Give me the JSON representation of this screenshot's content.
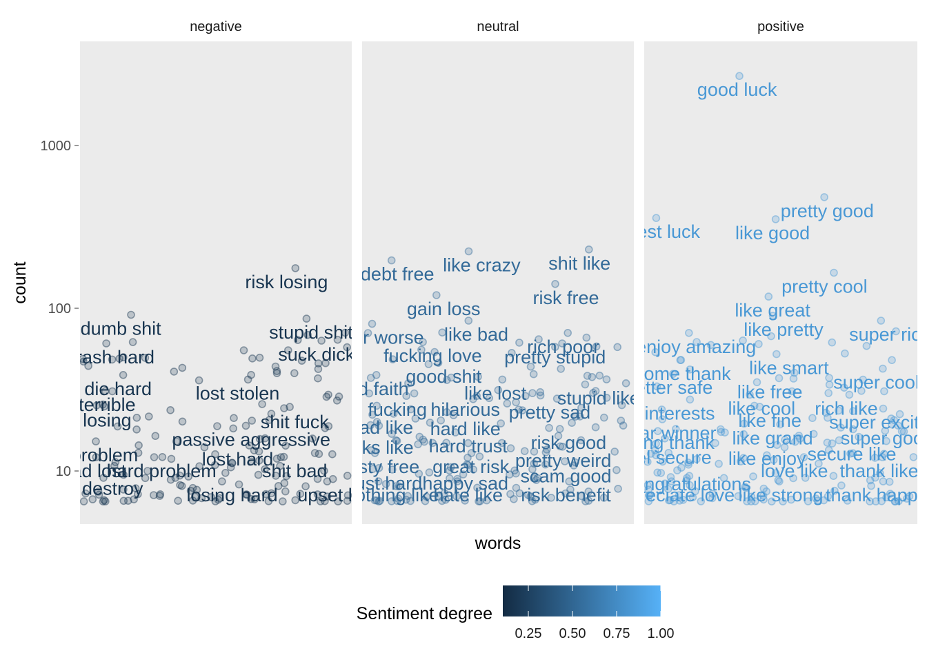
{
  "chart_data": {
    "type": "scatter",
    "xlabel": "words",
    "ylabel": "count",
    "y_scale": "log10",
    "ylim": [
      5,
      4000
    ],
    "y_ticks": [
      "10",
      "100",
      "1000"
    ],
    "grid": false,
    "legend": {
      "title": "Sentiment degree",
      "placement": "bottom",
      "type": "colorbar",
      "low_color": "#132B43",
      "high_color": "#56B1F7",
      "range": [
        0.05,
        1.0
      ],
      "ticks": [
        "0.25",
        "0.50",
        "0.75",
        "1.00"
      ]
    },
    "panels": [
      {
        "name": "negative",
        "degree": 0.12,
        "labels": [
          {
            "text": "dumb shit",
            "x": 0.15,
            "y": 75
          },
          {
            "text": "trash hard",
            "x": 0.12,
            "y": 50
          },
          {
            "text": "die hard",
            "x": 0.14,
            "y": 32
          },
          {
            "text": "terrible",
            "x": 0.1,
            "y": 25.5
          },
          {
            "text": "losing",
            "x": 0.1,
            "y": 20.5
          },
          {
            "text": "problem",
            "x": 0.09,
            "y": 12.5
          },
          {
            "text": "bad lost",
            "x": 0.05,
            "y": 10
          },
          {
            "text": "hard problem",
            "x": 0.3,
            "y": 10
          },
          {
            "text": "destroy",
            "x": 0.12,
            "y": 7.8
          },
          {
            "text": "risk losing",
            "x": 0.76,
            "y": 145
          },
          {
            "text": "stupid shit",
            "x": 0.85,
            "y": 71
          },
          {
            "text": "suck dick",
            "x": 0.87,
            "y": 52
          },
          {
            "text": "lost stolen",
            "x": 0.58,
            "y": 30
          },
          {
            "text": "shit fuck",
            "x": 0.79,
            "y": 20
          },
          {
            "text": "passive aggressive",
            "x": 0.63,
            "y": 15.6
          },
          {
            "text": "lost hard",
            "x": 0.58,
            "y": 11.8
          },
          {
            "text": "shit bad",
            "x": 0.79,
            "y": 10
          },
          {
            "text": "losing hard",
            "x": 0.56,
            "y": 7.1
          },
          {
            "text": "upset le",
            "x": 0.92,
            "y": 7.1
          }
        ]
      },
      {
        "name": "neutral",
        "degree": 0.5,
        "labels": [
          {
            "text": "debt free",
            "x": 0.13,
            "y": 162
          },
          {
            "text": "like crazy",
            "x": 0.44,
            "y": 184
          },
          {
            "text": "shit like",
            "x": 0.8,
            "y": 189
          },
          {
            "text": "risk free",
            "x": 0.75,
            "y": 116
          },
          {
            "text": "gain loss",
            "x": 0.3,
            "y": 99
          },
          {
            "text": "rich poor",
            "x": 0.74,
            "y": 58
          },
          {
            "text": "like bad",
            "x": 0.42,
            "y": 69
          },
          {
            "text": "ever worse",
            "x": 0.06,
            "y": 66
          },
          {
            "text": "fucking love",
            "x": 0.26,
            "y": 51
          },
          {
            "text": "pretty stupid",
            "x": 0.71,
            "y": 50
          },
          {
            "text": "good shit",
            "x": 0.3,
            "y": 38
          },
          {
            "text": "bad faith",
            "x": 0.04,
            "y": 32
          },
          {
            "text": "like lost",
            "x": 0.49,
            "y": 30
          },
          {
            "text": "stupid like",
            "x": 0.87,
            "y": 28
          },
          {
            "text": "fucking",
            "x": 0.13,
            "y": 23.8
          },
          {
            "text": "hilarious",
            "x": 0.38,
            "y": 23.8
          },
          {
            "text": "pretty sad",
            "x": 0.69,
            "y": 22.9
          },
          {
            "text": "bad like",
            "x": 0.07,
            "y": 18.5
          },
          {
            "text": "hard like",
            "x": 0.38,
            "y": 18.1
          },
          {
            "text": "risk good",
            "x": 0.76,
            "y": 14.9
          },
          {
            "text": "hard trust",
            "x": 0.39,
            "y": 14.2
          },
          {
            "text": "links like",
            "x": 0.06,
            "y": 13.9
          },
          {
            "text": "pretty weird",
            "x": 0.74,
            "y": 11.6
          },
          {
            "text": "tasty free",
            "x": 0.07,
            "y": 10.6
          },
          {
            "text": "great risk",
            "x": 0.4,
            "y": 10.6
          },
          {
            "text": "scam good",
            "x": 0.75,
            "y": 9.3
          },
          {
            "text": "just hard",
            "x": 0.09,
            "y": 8.4
          },
          {
            "text": "happy sad",
            "x": 0.38,
            "y": 8.4
          },
          {
            "text": "nothing like",
            "x": 0.11,
            "y": 7.1
          },
          {
            "text": "hate like",
            "x": 0.39,
            "y": 7.1
          },
          {
            "text": "risk benefit",
            "x": 0.75,
            "y": 7.1
          }
        ]
      },
      {
        "name": "positive",
        "degree": 0.82,
        "labels": [
          {
            "text": "good luck",
            "x": 0.34,
            "y": 2200
          },
          {
            "text": "best luck",
            "x": 0.07,
            "y": 295
          },
          {
            "text": "pretty good",
            "x": 0.67,
            "y": 396
          },
          {
            "text": "like good",
            "x": 0.47,
            "y": 290
          },
          {
            "text": "pretty cool",
            "x": 0.66,
            "y": 136
          },
          {
            "text": "like great",
            "x": 0.47,
            "y": 97
          },
          {
            "text": "like pretty",
            "x": 0.51,
            "y": 74
          },
          {
            "text": "super rich",
            "x": 0.9,
            "y": 69
          },
          {
            "text": "enjoy amazing",
            "x": 0.19,
            "y": 58
          },
          {
            "text": "like smart",
            "x": 0.53,
            "y": 43
          },
          {
            "text": "welcome thank",
            "x": 0.09,
            "y": 39.5
          },
          {
            "text": "super cool",
            "x": 0.85,
            "y": 35
          },
          {
            "text": "better safe",
            "x": 0.09,
            "y": 32.5
          },
          {
            "text": "like free",
            "x": 0.46,
            "y": 30.6
          },
          {
            "text": "like cool",
            "x": 0.43,
            "y": 24.2
          },
          {
            "text": "rich like",
            "x": 0.74,
            "y": 24.2
          },
          {
            "text": "interests",
            "x": 0.13,
            "y": 22.6
          },
          {
            "text": "like fine",
            "x": 0.46,
            "y": 20.4
          },
          {
            "text": "super excited",
            "x": 0.88,
            "y": 19.9
          },
          {
            "text": "clear winner",
            "x": 0.08,
            "y": 17.1
          },
          {
            "text": "like grand",
            "x": 0.47,
            "y": 15.9
          },
          {
            "text": "super good",
            "x": 0.89,
            "y": 15.9
          },
          {
            "text": "strong thank",
            "x": 0.07,
            "y": 14.9
          },
          {
            "text": "secure like",
            "x": 0.76,
            "y": 12.7
          },
          {
            "text": "feel secure",
            "x": 0.08,
            "y": 12.1
          },
          {
            "text": "like enjoy",
            "x": 0.45,
            "y": 11.9
          },
          {
            "text": "love like",
            "x": 0.55,
            "y": 10
          },
          {
            "text": "thank like",
            "x": 0.86,
            "y": 10
          },
          {
            "text": "congratulations",
            "x": 0.16,
            "y": 8.3
          },
          {
            "text": "appreciate love",
            "x": 0.1,
            "y": 7.1
          },
          {
            "text": "like strong",
            "x": 0.5,
            "y": 7.1
          },
          {
            "text": "thank happy",
            "x": 0.85,
            "y": 7.1
          }
        ]
      }
    ]
  }
}
